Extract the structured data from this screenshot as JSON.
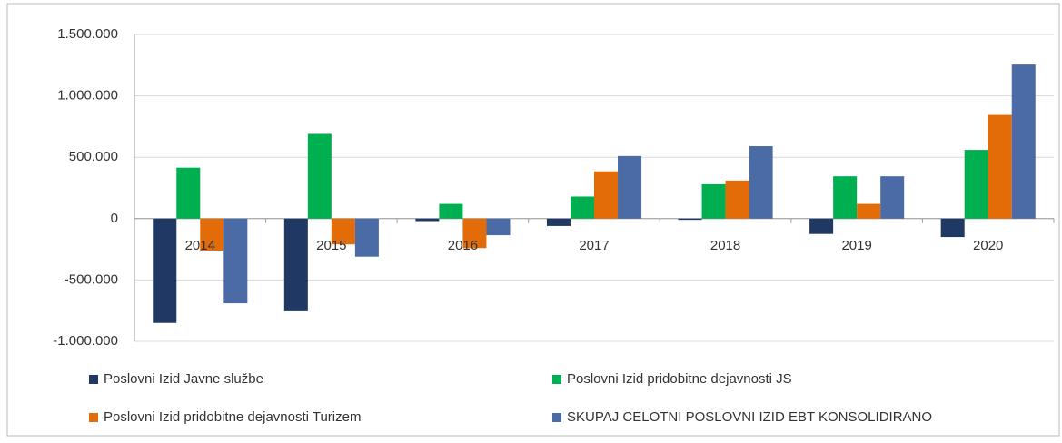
{
  "chart_data": {
    "type": "bar",
    "categories": [
      "2014",
      "2015",
      "2016",
      "2017",
      "2018",
      "2019",
      "2020"
    ],
    "series": [
      {
        "name": "Poslovni Izid Javne službe",
        "color": "#1f3864",
        "values": [
          -850000,
          -755000,
          -20000,
          -60000,
          -10000,
          -125000,
          -150000
        ]
      },
      {
        "name": "Poslovni Izid pridobitne dejavnosti JS",
        "color": "#00b050",
        "values": [
          415000,
          690000,
          120000,
          180000,
          280000,
          345000,
          560000
        ]
      },
      {
        "name": "Poslovni Izid pridobitne dejavnosti Turizem",
        "color": "#e36c09",
        "values": [
          -260000,
          -210000,
          -240000,
          385000,
          310000,
          120000,
          845000
        ]
      },
      {
        "name": "SKUPAJ CELOTNI POSLOVNI IZID EBT KONSOLIDIRANO",
        "color": "#4a6ba6",
        "values": [
          -690000,
          -310000,
          -135000,
          510000,
          590000,
          345000,
          1255000
        ]
      }
    ],
    "ylim": [
      -1000000,
      1500000
    ],
    "yticks": [
      {
        "value": -1000000,
        "label": "-1.000.000"
      },
      {
        "value": -500000,
        "label": "-500.000"
      },
      0,
      {
        "value": 500000,
        "label": "500.000"
      },
      {
        "value": 1000000,
        "label": "1.000.000"
      },
      {
        "value": 1500000,
        "label": "1.500.000"
      }
    ],
    "grid": true,
    "legend": "bottom"
  }
}
